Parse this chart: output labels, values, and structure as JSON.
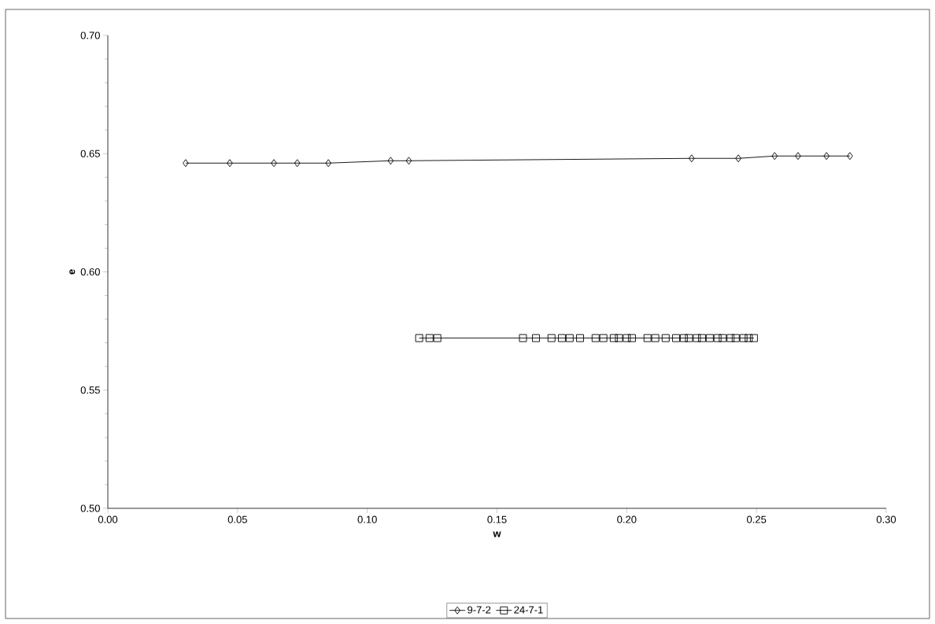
{
  "chart_data": {
    "type": "line",
    "xlabel": "w",
    "ylabel": "e",
    "xlim": [
      0,
      0.3
    ],
    "ylim": [
      0.5,
      0.7
    ],
    "xticks": [
      {
        "value": 0,
        "label": "0.00"
      },
      {
        "value": 0.05,
        "label": "0.05"
      },
      {
        "value": 0.1,
        "label": "0.10"
      },
      {
        "value": 0.15,
        "label": "0.15"
      },
      {
        "value": 0.2,
        "label": "0.20"
      },
      {
        "value": 0.25,
        "label": "0.25"
      },
      {
        "value": 0.3,
        "label": "0.30"
      }
    ],
    "yticks": [
      {
        "value": 0.5,
        "label": "0.50"
      },
      {
        "value": 0.55,
        "label": "0.55"
      },
      {
        "value": 0.6,
        "label": "0.60"
      },
      {
        "value": 0.65,
        "label": "0.65"
      },
      {
        "value": 0.7,
        "label": "0.70"
      }
    ],
    "grid": false,
    "legend": "bottom",
    "series": [
      {
        "name": "9-7-2",
        "color": "#000000",
        "marker": "diamond",
        "x": [
          0.03,
          0.047,
          0.064,
          0.073,
          0.085,
          0.109,
          0.116,
          0.225,
          0.243,
          0.257,
          0.266,
          0.277,
          0.286
        ],
        "values": [
          0.646,
          0.646,
          0.646,
          0.646,
          0.646,
          0.647,
          0.647,
          0.648,
          0.648,
          0.649,
          0.649,
          0.649,
          0.649
        ]
      },
      {
        "name": "24-7-1",
        "color": "#000000",
        "marker": "square",
        "x": [
          0.12,
          0.124,
          0.127,
          0.16,
          0.165,
          0.171,
          0.175,
          0.178,
          0.182,
          0.188,
          0.191,
          0.195,
          0.197,
          0.2,
          0.202,
          0.208,
          0.211,
          0.215,
          0.219,
          0.222,
          0.224,
          0.227,
          0.229,
          0.232,
          0.235,
          0.237,
          0.24,
          0.242,
          0.245,
          0.247,
          0.249
        ],
        "values": [
          0.572,
          0.572,
          0.572,
          0.572,
          0.572,
          0.572,
          0.572,
          0.572,
          0.572,
          0.572,
          0.572,
          0.572,
          0.572,
          0.572,
          0.572,
          0.572,
          0.572,
          0.572,
          0.572,
          0.572,
          0.572,
          0.572,
          0.572,
          0.572,
          0.572,
          0.572,
          0.572,
          0.572,
          0.572,
          0.572,
          0.572
        ]
      }
    ]
  }
}
